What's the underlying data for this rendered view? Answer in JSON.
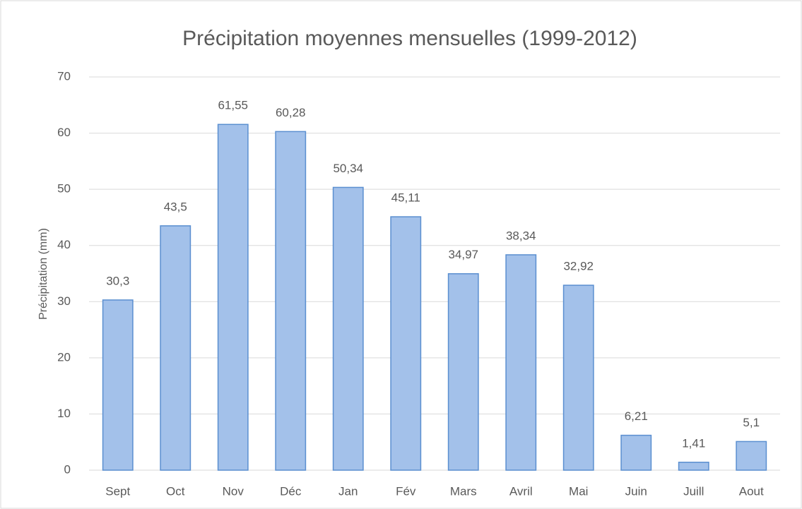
{
  "chart_data": {
    "type": "bar",
    "title": "Précipitation moyennes mensuelles (1999-2012)",
    "y_label": "Précipitation (mm)",
    "categories": [
      "Sept",
      "Oct",
      "Nov",
      "Déc",
      "Jan",
      "Fév",
      "Mars",
      "Avril",
      "Mai",
      "Juin",
      "Juill",
      "Aout"
    ],
    "values": [
      30.3,
      43.5,
      61.55,
      60.28,
      50.34,
      45.11,
      34.97,
      38.34,
      32.92,
      6.21,
      1.41,
      5.1
    ],
    "value_labels": [
      "30,3",
      "43,5",
      "61,55",
      "60,28",
      "50,34",
      "45,11",
      "34,97",
      "38,34",
      "32,92",
      "6,21",
      "1,41",
      "5,1"
    ],
    "color": "#a3c1ea",
    "edgecolor": "#5b8fd0",
    "ylim": [
      0,
      70
    ],
    "yticks": [
      0,
      10,
      20,
      30,
      40,
      50,
      60,
      70
    ],
    "grid": true
  }
}
